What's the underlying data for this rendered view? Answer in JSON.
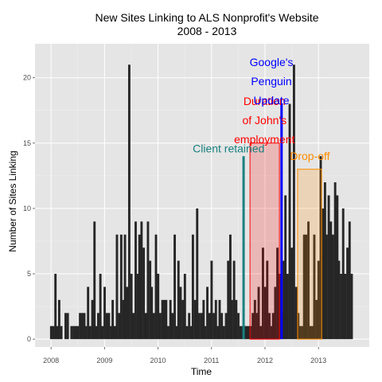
{
  "chart_data": {
    "type": "bar",
    "title_lines": [
      "New Sites Linking to ALS Nonprofit's Website",
      "2008 - 2013"
    ],
    "xlabel": "Time",
    "ylabel": "Number of Sites Linking",
    "x_ticks": [
      2008,
      2009,
      2010,
      2011,
      2012,
      2013
    ],
    "y_ticks": [
      0,
      5,
      10,
      15,
      20
    ],
    "xlim": [
      2007.7,
      2013.95
    ],
    "ylim": [
      -0.6,
      22.6
    ],
    "grid": true,
    "background": "#e5e5e5",
    "bar_color": "#262626",
    "bar_width_years": 0.0385,
    "bars": [
      [
        2008.0,
        1
      ],
      [
        2008.04,
        1
      ],
      [
        2008.08,
        5
      ],
      [
        2008.12,
        1
      ],
      [
        2008.15,
        3
      ],
      [
        2008.19,
        1
      ],
      [
        2008.27,
        2
      ],
      [
        2008.31,
        2
      ],
      [
        2008.38,
        1
      ],
      [
        2008.42,
        1
      ],
      [
        2008.46,
        1
      ],
      [
        2008.5,
        1
      ],
      [
        2008.54,
        2
      ],
      [
        2008.58,
        2
      ],
      [
        2008.62,
        2
      ],
      [
        2008.65,
        1
      ],
      [
        2008.69,
        4
      ],
      [
        2008.73,
        1
      ],
      [
        2008.77,
        3
      ],
      [
        2008.81,
        9
      ],
      [
        2008.85,
        1
      ],
      [
        2008.88,
        2
      ],
      [
        2008.92,
        5
      ],
      [
        2008.96,
        1
      ],
      [
        2009.0,
        4
      ],
      [
        2009.04,
        2
      ],
      [
        2009.08,
        2
      ],
      [
        2009.12,
        1
      ],
      [
        2009.15,
        3
      ],
      [
        2009.19,
        1
      ],
      [
        2009.23,
        8
      ],
      [
        2009.27,
        2
      ],
      [
        2009.31,
        8
      ],
      [
        2009.35,
        3
      ],
      [
        2009.38,
        8
      ],
      [
        2009.42,
        4
      ],
      [
        2009.46,
        21
      ],
      [
        2009.5,
        5
      ],
      [
        2009.54,
        2
      ],
      [
        2009.58,
        9
      ],
      [
        2009.62,
        5
      ],
      [
        2009.65,
        8
      ],
      [
        2009.69,
        9
      ],
      [
        2009.73,
        7
      ],
      [
        2009.77,
        2
      ],
      [
        2009.81,
        9
      ],
      [
        2009.85,
        6
      ],
      [
        2009.88,
        4
      ],
      [
        2009.92,
        2
      ],
      [
        2009.96,
        8
      ],
      [
        2010.0,
        5
      ],
      [
        2010.04,
        2
      ],
      [
        2010.08,
        3
      ],
      [
        2010.12,
        3
      ],
      [
        2010.15,
        3
      ],
      [
        2010.19,
        1
      ],
      [
        2010.23,
        3
      ],
      [
        2010.27,
        2
      ],
      [
        2010.31,
        8
      ],
      [
        2010.35,
        1
      ],
      [
        2010.38,
        6
      ],
      [
        2010.42,
        4
      ],
      [
        2010.46,
        3
      ],
      [
        2010.5,
        5
      ],
      [
        2010.54,
        1
      ],
      [
        2010.58,
        2
      ],
      [
        2010.62,
        1
      ],
      [
        2010.65,
        8
      ],
      [
        2010.69,
        3
      ],
      [
        2010.73,
        10
      ],
      [
        2010.77,
        2
      ],
      [
        2010.81,
        2
      ],
      [
        2010.85,
        3
      ],
      [
        2010.88,
        1
      ],
      [
        2010.92,
        4
      ],
      [
        2010.96,
        2
      ],
      [
        2011.0,
        6
      ],
      [
        2011.04,
        2
      ],
      [
        2011.08,
        3
      ],
      [
        2011.12,
        1
      ],
      [
        2011.15,
        3
      ],
      [
        2011.19,
        2
      ],
      [
        2011.23,
        1
      ],
      [
        2011.27,
        2
      ],
      [
        2011.31,
        6
      ],
      [
        2011.35,
        8
      ],
      [
        2011.38,
        3
      ],
      [
        2011.42,
        6
      ],
      [
        2011.46,
        3
      ],
      [
        2011.5,
        2
      ],
      [
        2011.54,
        1
      ],
      [
        2011.58,
        1
      ],
      [
        2011.62,
        1
      ],
      [
        2011.65,
        1
      ],
      [
        2011.69,
        1
      ],
      [
        2011.73,
        1
      ],
      [
        2011.77,
        2
      ],
      [
        2011.81,
        3
      ],
      [
        2011.85,
        2
      ],
      [
        2011.88,
        4
      ],
      [
        2011.92,
        1
      ],
      [
        2011.96,
        7
      ],
      [
        2012.0,
        4
      ],
      [
        2012.04,
        6
      ],
      [
        2012.08,
        2
      ],
      [
        2012.12,
        1
      ],
      [
        2012.15,
        2
      ],
      [
        2012.19,
        4
      ],
      [
        2012.23,
        7
      ],
      [
        2012.27,
        5
      ],
      [
        2012.31,
        2
      ],
      [
        2012.35,
        6
      ],
      [
        2012.38,
        11
      ],
      [
        2012.42,
        5
      ],
      [
        2012.46,
        18
      ],
      [
        2012.5,
        7
      ],
      [
        2012.54,
        21
      ],
      [
        2012.58,
        4
      ],
      [
        2012.62,
        2
      ],
      [
        2012.65,
        1
      ],
      [
        2012.69,
        1
      ],
      [
        2012.73,
        8
      ],
      [
        2012.77,
        8
      ],
      [
        2012.81,
        9
      ],
      [
        2012.85,
        1
      ],
      [
        2012.88,
        1
      ],
      [
        2012.92,
        8
      ],
      [
        2012.96,
        3
      ],
      [
        2013.0,
        6
      ],
      [
        2013.04,
        14
      ],
      [
        2013.08,
        10
      ],
      [
        2013.12,
        12
      ],
      [
        2013.15,
        8
      ],
      [
        2013.19,
        11
      ],
      [
        2013.23,
        9
      ],
      [
        2013.27,
        8
      ],
      [
        2013.31,
        12
      ],
      [
        2013.35,
        11
      ],
      [
        2013.38,
        6
      ],
      [
        2013.42,
        5
      ],
      [
        2013.46,
        10
      ],
      [
        2013.5,
        5
      ],
      [
        2013.54,
        7
      ],
      [
        2013.58,
        9
      ],
      [
        2013.62,
        5
      ]
    ],
    "annotations": {
      "client": {
        "text": "Client retained",
        "color": "#1a8080",
        "x": 2011.6,
        "y_top": 14
      },
      "duration": {
        "lines": [
          "Duration",
          "of John's",
          "employment"
        ],
        "color": "#ff0000",
        "fill": "#ff0000",
        "x0": 2011.72,
        "x1": 2012.27,
        "y_top": 15
      },
      "penguin": {
        "lines": [
          "Google's",
          "Penguin",
          "Update"
        ],
        "color": "#0000ff",
        "x": 2012.31,
        "y_top": 18
      },
      "dropoff": {
        "text": "Drop-off",
        "color": "#ff8c00",
        "fill": "#ff8c00",
        "x0": 2012.61,
        "x1": 2013.06,
        "y_top": 13
      }
    }
  }
}
